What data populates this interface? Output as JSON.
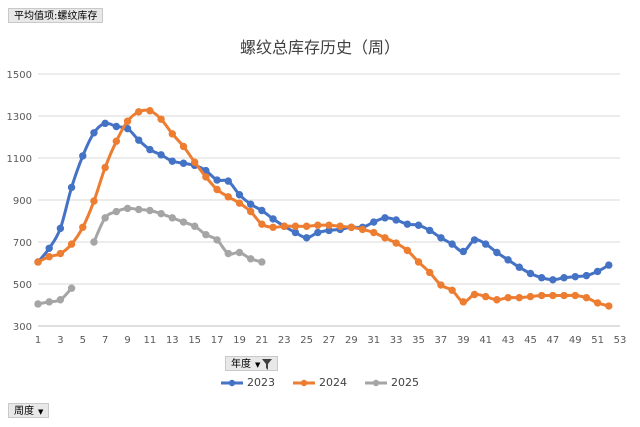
{
  "pivot_value_button": "平均值项:螺纹库存",
  "year_filter_button": "年度",
  "week_filter_button": "周度",
  "colors": {
    "2023": "#4472C4",
    "2024": "#ED7D31",
    "2025": "#A5A5A5"
  },
  "chart_data": {
    "type": "line",
    "title": "螺纹总库存历史（周）",
    "xlabel": "",
    "ylabel": "",
    "xlim": [
      1,
      53
    ],
    "ylim": [
      300,
      1500
    ],
    "yticks": [
      300,
      500,
      700,
      900,
      1100,
      1300,
      1500
    ],
    "xticks": [
      1,
      3,
      5,
      7,
      9,
      11,
      13,
      15,
      17,
      19,
      21,
      23,
      25,
      27,
      29,
      31,
      33,
      35,
      37,
      39,
      41,
      43,
      45,
      47,
      49,
      51,
      53
    ],
    "grid": true,
    "legend": "bottom",
    "series": [
      {
        "name": "2023",
        "x": [
          1,
          2,
          3,
          4,
          5,
          6,
          7,
          8,
          9,
          10,
          11,
          12,
          13,
          14,
          15,
          16,
          17,
          18,
          19,
          20,
          21,
          22,
          23,
          24,
          25,
          26,
          27,
          28,
          29,
          30,
          31,
          32,
          33,
          34,
          35,
          36,
          37,
          38,
          39,
          40,
          41,
          42,
          43,
          44,
          45,
          46,
          47,
          48,
          49,
          50,
          51,
          52
        ],
        "values": [
          605,
          670,
          765,
          960,
          1110,
          1220,
          1265,
          1250,
          1240,
          1185,
          1140,
          1115,
          1085,
          1075,
          1065,
          1040,
          995,
          990,
          925,
          880,
          850,
          810,
          775,
          745,
          720,
          745,
          755,
          760,
          770,
          770,
          795,
          815,
          805,
          785,
          780,
          755,
          720,
          690,
          655,
          710,
          690,
          650,
          615,
          580,
          550,
          530,
          520,
          530,
          535,
          540,
          560,
          590
        ]
      },
      {
        "name": "2024",
        "x": [
          1,
          2,
          3,
          4,
          5,
          6,
          7,
          8,
          9,
          10,
          11,
          12,
          13,
          14,
          15,
          16,
          17,
          18,
          19,
          20,
          21,
          22,
          23,
          24,
          25,
          26,
          27,
          28,
          29,
          30,
          31,
          32,
          33,
          34,
          35,
          36,
          37,
          38,
          39,
          40,
          41,
          42,
          43,
          44,
          45,
          46,
          47,
          48,
          49,
          50,
          51,
          52
        ],
        "values": [
          605,
          630,
          645,
          690,
          770,
          895,
          1055,
          1180,
          1275,
          1320,
          1325,
          1285,
          1215,
          1155,
          1080,
          1010,
          950,
          915,
          885,
          845,
          785,
          770,
          775,
          775,
          775,
          780,
          780,
          775,
          770,
          760,
          745,
          720,
          695,
          660,
          605,
          555,
          495,
          470,
          415,
          450,
          440,
          425,
          435,
          435,
          440,
          445,
          445,
          445,
          445,
          435,
          410,
          395
        ]
      },
      {
        "name": "2025",
        "x": [
          1,
          2,
          3,
          4,
          6,
          7,
          8,
          9,
          10,
          11,
          12,
          13,
          14,
          15,
          16,
          17,
          18,
          19,
          20,
          21
        ],
        "values": [
          405,
          415,
          425,
          480,
          700,
          815,
          845,
          860,
          855,
          850,
          835,
          815,
          795,
          775,
          735,
          710,
          645,
          650,
          620,
          605
        ]
      }
    ]
  }
}
